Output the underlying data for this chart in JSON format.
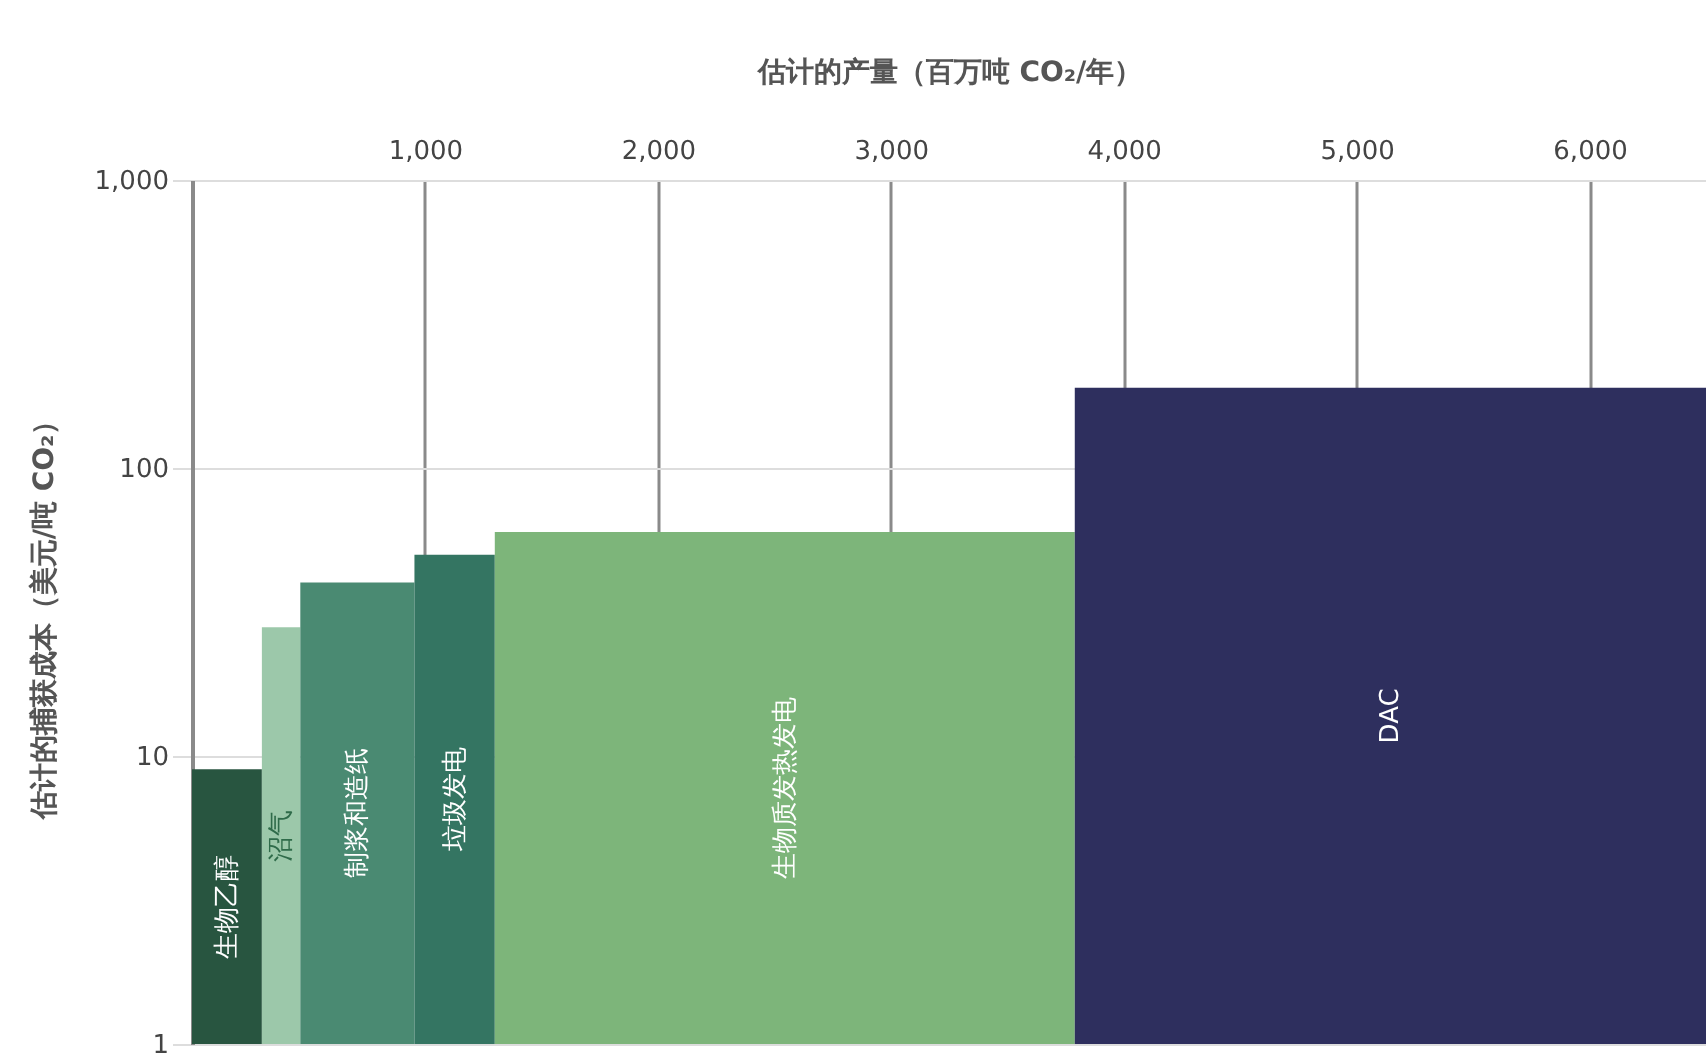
{
  "chart_data": {
    "type": "histogram",
    "xlabel": "估计的产量（百万吨 CO₂/年）",
    "ylabel": "估计的捕获成本（美元/吨 CO₂）",
    "categories": [
      "生物乙醇",
      "沼气",
      "制浆和造纸",
      "垃圾发电",
      "生物质发热发电",
      "DAC"
    ],
    "bins": [
      0,
      300,
      465,
      955,
      1300,
      3790,
      6500
    ],
    "values": [
      9,
      28,
      40,
      50,
      60,
      190
    ],
    "colors": [
      "#285540",
      "#9cc8aa",
      "#4a8a72",
      "#347562",
      "#7db57a",
      "#2e2f5e"
    ],
    "xlim": [
      0,
      6500
    ],
    "xticks": [
      {
        "value": 1000,
        "label": "1,000"
      },
      {
        "value": 2000,
        "label": "2,000"
      },
      {
        "value": 3000,
        "label": "3,000"
      },
      {
        "value": 4000,
        "label": "4,000"
      },
      {
        "value": 5000,
        "label": "5,000"
      },
      {
        "value": 6000,
        "label": "6,000"
      }
    ],
    "ylim": [
      1,
      1000
    ],
    "yticks": [
      1,
      10,
      100,
      {
        "value": 1000,
        "label": "1,000"
      }
    ],
    "log": true,
    "grid": true
  }
}
